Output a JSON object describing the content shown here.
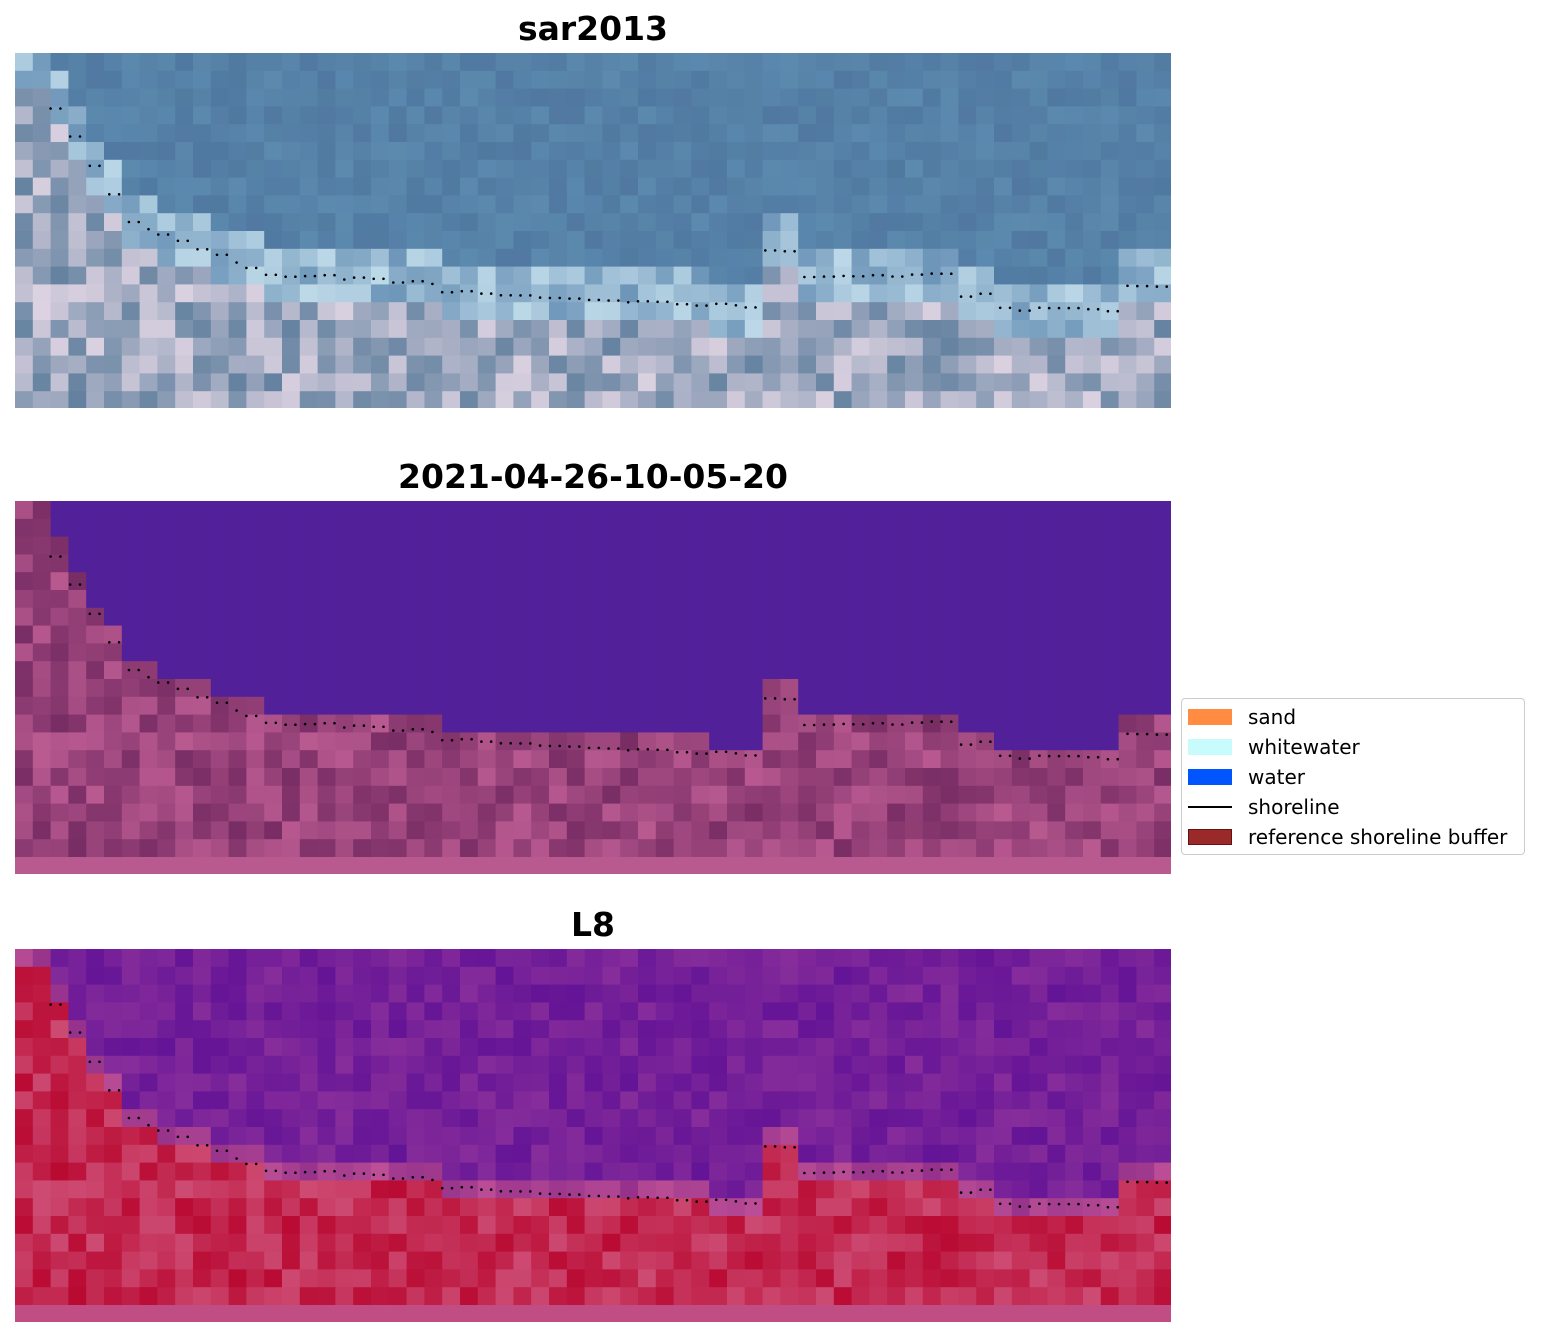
{
  "panels": [
    {
      "title": "sar2013",
      "image": "RGB satellite image of coast with shoreline trace"
    },
    {
      "title": "2021-04-26-10-05-20",
      "image": "classified image: water in purple, land in magenta"
    },
    {
      "title": "L8",
      "image": "false-color image: water in purple, land in red"
    }
  ],
  "legend": {
    "items": [
      {
        "label": "sand",
        "color": "#ff8c40",
        "kind": "patch"
      },
      {
        "label": "whitewater",
        "color": "#c8fcfc",
        "kind": "patch"
      },
      {
        "label": "water",
        "color": "#0055ff",
        "kind": "patch"
      },
      {
        "label": "shoreline",
        "color": "#000000",
        "kind": "line"
      },
      {
        "label": "reference shoreline buffer",
        "color": "#9a2a2a",
        "kind": "patch"
      }
    ]
  },
  "colors": {
    "water_class": "#52219a",
    "land_class": "#8a3a78",
    "shoreline": "#000000"
  }
}
